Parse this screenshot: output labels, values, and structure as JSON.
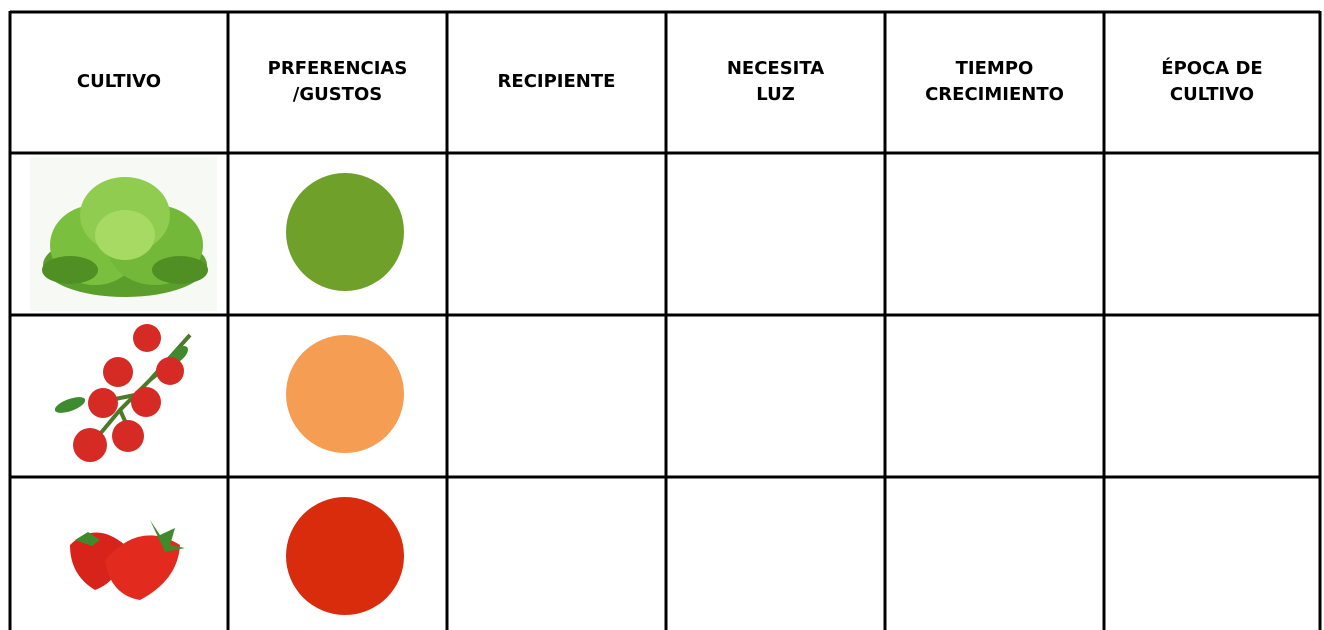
{
  "table": {
    "headers": [
      [
        "CULTIVO"
      ],
      [
        "PRFERENCIAS",
        "/GUSTOS"
      ],
      [
        "RECIPIENTE"
      ],
      [
        "NECESITA",
        "LUZ"
      ],
      [
        "TIEMPO",
        "CRECIMIENTO"
      ],
      [
        "ÉPOCA DE",
        "CULTIVO"
      ]
    ]
  }
}
